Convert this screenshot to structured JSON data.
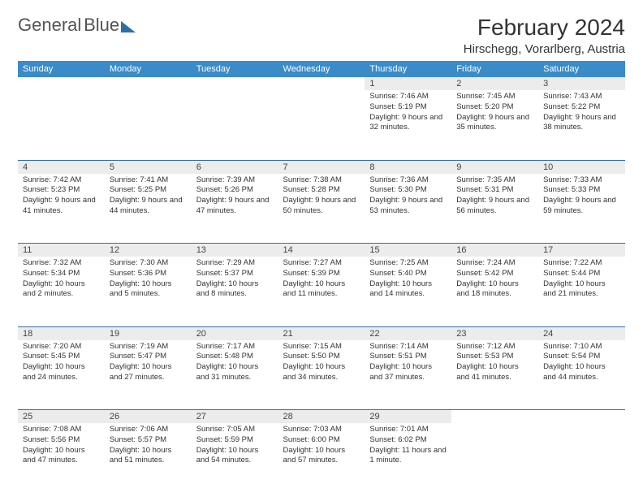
{
  "logo": {
    "line1": "General",
    "line2": "Blue"
  },
  "title": "February 2024",
  "location": "Hirschegg, Vorarlberg, Austria",
  "header_bg": "#3b8bc9",
  "header_fg": "#ffffff",
  "daynum_bg": "#ececec",
  "rule_color": "#2f6fa8",
  "weekdays": [
    "Sunday",
    "Monday",
    "Tuesday",
    "Wednesday",
    "Thursday",
    "Friday",
    "Saturday"
  ],
  "weeks": [
    [
      null,
      null,
      null,
      null,
      {
        "n": "1",
        "sr": "7:46 AM",
        "ss": "5:19 PM",
        "dl": "9 hours and 32 minutes."
      },
      {
        "n": "2",
        "sr": "7:45 AM",
        "ss": "5:20 PM",
        "dl": "9 hours and 35 minutes."
      },
      {
        "n": "3",
        "sr": "7:43 AM",
        "ss": "5:22 PM",
        "dl": "9 hours and 38 minutes."
      }
    ],
    [
      {
        "n": "4",
        "sr": "7:42 AM",
        "ss": "5:23 PM",
        "dl": "9 hours and 41 minutes."
      },
      {
        "n": "5",
        "sr": "7:41 AM",
        "ss": "5:25 PM",
        "dl": "9 hours and 44 minutes."
      },
      {
        "n": "6",
        "sr": "7:39 AM",
        "ss": "5:26 PM",
        "dl": "9 hours and 47 minutes."
      },
      {
        "n": "7",
        "sr": "7:38 AM",
        "ss": "5:28 PM",
        "dl": "9 hours and 50 minutes."
      },
      {
        "n": "8",
        "sr": "7:36 AM",
        "ss": "5:30 PM",
        "dl": "9 hours and 53 minutes."
      },
      {
        "n": "9",
        "sr": "7:35 AM",
        "ss": "5:31 PM",
        "dl": "9 hours and 56 minutes."
      },
      {
        "n": "10",
        "sr": "7:33 AM",
        "ss": "5:33 PM",
        "dl": "9 hours and 59 minutes."
      }
    ],
    [
      {
        "n": "11",
        "sr": "7:32 AM",
        "ss": "5:34 PM",
        "dl": "10 hours and 2 minutes."
      },
      {
        "n": "12",
        "sr": "7:30 AM",
        "ss": "5:36 PM",
        "dl": "10 hours and 5 minutes."
      },
      {
        "n": "13",
        "sr": "7:29 AM",
        "ss": "5:37 PM",
        "dl": "10 hours and 8 minutes."
      },
      {
        "n": "14",
        "sr": "7:27 AM",
        "ss": "5:39 PM",
        "dl": "10 hours and 11 minutes."
      },
      {
        "n": "15",
        "sr": "7:25 AM",
        "ss": "5:40 PM",
        "dl": "10 hours and 14 minutes."
      },
      {
        "n": "16",
        "sr": "7:24 AM",
        "ss": "5:42 PM",
        "dl": "10 hours and 18 minutes."
      },
      {
        "n": "17",
        "sr": "7:22 AM",
        "ss": "5:44 PM",
        "dl": "10 hours and 21 minutes."
      }
    ],
    [
      {
        "n": "18",
        "sr": "7:20 AM",
        "ss": "5:45 PM",
        "dl": "10 hours and 24 minutes."
      },
      {
        "n": "19",
        "sr": "7:19 AM",
        "ss": "5:47 PM",
        "dl": "10 hours and 27 minutes."
      },
      {
        "n": "20",
        "sr": "7:17 AM",
        "ss": "5:48 PM",
        "dl": "10 hours and 31 minutes."
      },
      {
        "n": "21",
        "sr": "7:15 AM",
        "ss": "5:50 PM",
        "dl": "10 hours and 34 minutes."
      },
      {
        "n": "22",
        "sr": "7:14 AM",
        "ss": "5:51 PM",
        "dl": "10 hours and 37 minutes."
      },
      {
        "n": "23",
        "sr": "7:12 AM",
        "ss": "5:53 PM",
        "dl": "10 hours and 41 minutes."
      },
      {
        "n": "24",
        "sr": "7:10 AM",
        "ss": "5:54 PM",
        "dl": "10 hours and 44 minutes."
      }
    ],
    [
      {
        "n": "25",
        "sr": "7:08 AM",
        "ss": "5:56 PM",
        "dl": "10 hours and 47 minutes."
      },
      {
        "n": "26",
        "sr": "7:06 AM",
        "ss": "5:57 PM",
        "dl": "10 hours and 51 minutes."
      },
      {
        "n": "27",
        "sr": "7:05 AM",
        "ss": "5:59 PM",
        "dl": "10 hours and 54 minutes."
      },
      {
        "n": "28",
        "sr": "7:03 AM",
        "ss": "6:00 PM",
        "dl": "10 hours and 57 minutes."
      },
      {
        "n": "29",
        "sr": "7:01 AM",
        "ss": "6:02 PM",
        "dl": "11 hours and 1 minute."
      },
      null,
      null
    ]
  ],
  "labels": {
    "sunrise": "Sunrise: ",
    "sunset": "Sunset: ",
    "daylight": "Daylight: "
  }
}
